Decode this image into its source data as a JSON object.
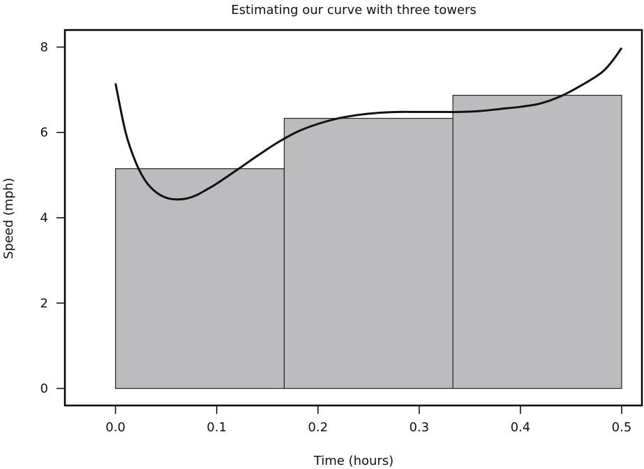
{
  "chart_data": {
    "type": "bar",
    "title": "Estimating our curve with three towers",
    "xlabel": "Time (hours)",
    "ylabel": "Speed (mph)",
    "xlim": [
      -0.05,
      0.52
    ],
    "ylim": [
      -0.4,
      8.4
    ],
    "xticks": [
      0.0,
      0.1,
      0.2,
      0.3,
      0.4,
      0.5
    ],
    "xtick_labels": [
      "0.0",
      "0.1",
      "0.2",
      "0.3",
      "0.4",
      "0.5"
    ],
    "yticks": [
      0,
      2,
      4,
      6,
      8
    ],
    "ytick_labels": [
      "0",
      "2",
      "4",
      "6",
      "8"
    ],
    "grid": false,
    "bars": [
      {
        "x_start": 0.0,
        "x_end": 0.1667,
        "value": 5.15
      },
      {
        "x_start": 0.1667,
        "x_end": 0.3333,
        "value": 6.33
      },
      {
        "x_start": 0.3333,
        "x_end": 0.5,
        "value": 6.87
      }
    ],
    "curve": {
      "x": [
        0.0,
        0.01,
        0.02,
        0.03,
        0.04,
        0.05,
        0.06,
        0.07,
        0.08,
        0.09,
        0.1,
        0.12,
        0.14,
        0.16,
        0.18,
        0.2,
        0.22,
        0.24,
        0.26,
        0.28,
        0.3,
        0.32,
        0.34,
        0.36,
        0.38,
        0.4,
        0.42,
        0.44,
        0.46,
        0.48,
        0.49,
        0.5
      ],
      "y": [
        7.15,
        6.0,
        5.3,
        4.85,
        4.6,
        4.47,
        4.43,
        4.45,
        4.53,
        4.66,
        4.8,
        5.12,
        5.45,
        5.76,
        6.02,
        6.2,
        6.33,
        6.41,
        6.46,
        6.48,
        6.48,
        6.48,
        6.48,
        6.5,
        6.55,
        6.6,
        6.68,
        6.85,
        7.1,
        7.4,
        7.65,
        7.98
      ]
    },
    "colors": {
      "bar_fill": "#bcbcbf",
      "bar_stroke": "#222222",
      "curve": "#111111",
      "axis": "#000000"
    }
  }
}
